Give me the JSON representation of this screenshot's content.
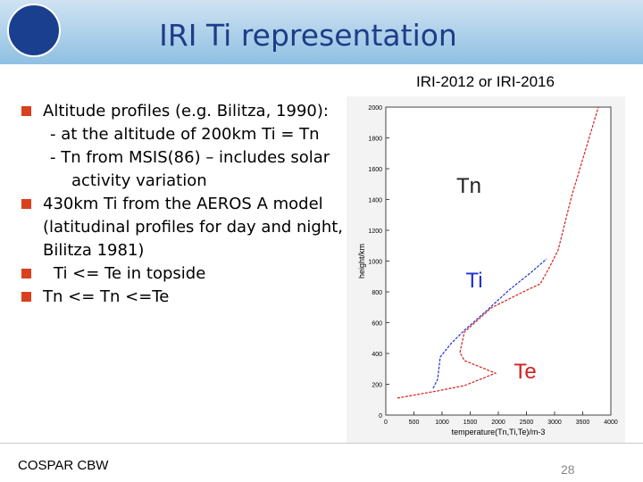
{
  "header": {
    "title": "IRI Ti representation"
  },
  "subtitle": "IRI-2012 or IRI-2016",
  "bullets": [
    {
      "text": "Altitude profiles (e.g. Bilitza, 1990):",
      "sub": [
        "- at the altitude of 200km  Ti = Tn",
        "- Tn from MSIS(86) – includes solar activity variation"
      ]
    },
    {
      "text": "430km Ti from the AEROS A model (latitudinal profiles for day and night, Bilitza 1981)",
      "sub": []
    },
    {
      "text": "Ti <= Te in topside",
      "sub": []
    },
    {
      "text": "Tn <= Tn <=Te",
      "sub": []
    }
  ],
  "chart_data": {
    "type": "line",
    "xlabel": "temperature(Tn,Ti,Te)/m-3",
    "ylabel": "height/km",
    "xlim": [
      0,
      4000
    ],
    "ylim": [
      0,
      2000
    ],
    "xticks": [
      0,
      500,
      1000,
      1500,
      2000,
      2500,
      3000,
      3500,
      4000
    ],
    "yticks": [
      0,
      200,
      400,
      600,
      800,
      1000,
      1200,
      1400,
      1600,
      1800,
      2000
    ],
    "annotations": [
      "Tn",
      "Ti",
      "Te"
    ],
    "series": [
      {
        "color": "#d42020",
        "x": [
          206,
          921,
          1397,
          1952,
          1397,
          1317,
          1397,
          1873,
          2508,
          2746,
          2905,
          3063,
          3302,
          3540,
          3778
        ],
        "values": [
          110,
          157,
          191,
          272,
          354,
          406,
          539,
          696,
          812,
          852,
          957,
          1072,
          1420,
          1710,
          2000
        ]
      },
      {
        "color": "#2030d0",
        "x": [
          841,
          921,
          968,
          1159,
          1397,
          1794,
          2190,
          2587,
          2857
        ],
        "values": [
          174,
          232,
          377,
          464,
          551,
          678,
          812,
          928,
          1014
        ]
      }
    ]
  },
  "footer": {
    "left": "COSPAR CBW",
    "page": "28"
  }
}
